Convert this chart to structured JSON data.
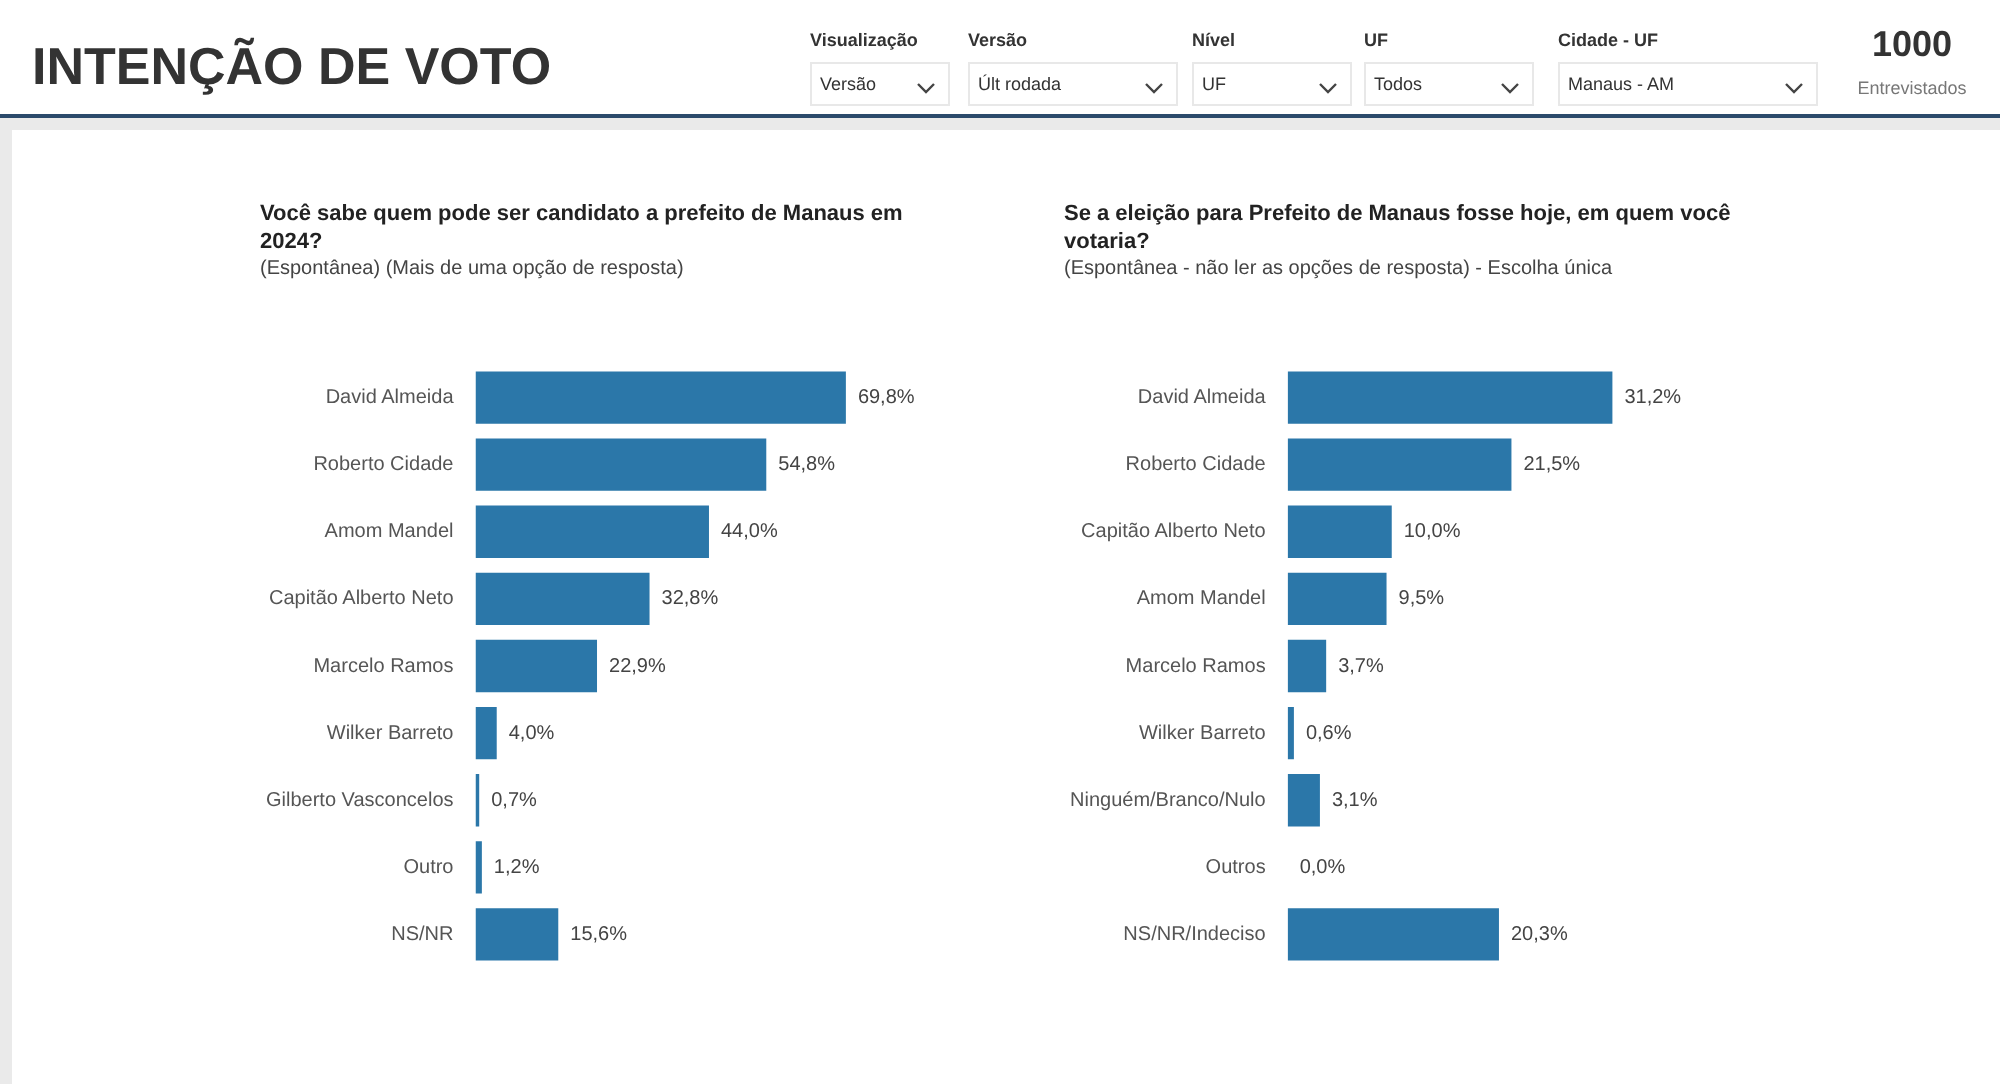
{
  "chart_data": [
    {
      "type": "other",
      "title": "INTENÇÃO DE VOTO",
      "annotations": [
        "Visualização",
        "Versão",
        "Versão",
        "Últ rodada",
        "Nível",
        "UF",
        "UF",
        "Todos",
        "Cidade - UF",
        "Manaus - AM",
        "1000",
        "Entrevistados"
      ]
    },
    {
      "type": "bar",
      "orientation": "horizontal",
      "title": "Você sabe quem pode ser candidato a prefeito de Manaus em 2024?",
      "subtitle": "(Espontânea) (Mais de uma opção de resposta)",
      "categories": [
        "David Almeida",
        "Roberto Cidade",
        "Amom Mandel",
        "Capitão Alberto Neto",
        "Marcelo Ramos",
        "Wilker Barreto",
        "Gilberto Vasconcelos",
        "Outro",
        "NS/NR"
      ],
      "values": [
        69.8,
        54.8,
        44.0,
        32.8,
        22.9,
        4.0,
        0.7,
        1.2,
        15.6
      ],
      "value_labels": [
        "69,8%",
        "54,8%",
        "44,0%",
        "32,8%",
        "22,9%",
        "4,0%",
        "0,7%",
        "1,2%",
        "15,6%"
      ],
      "color": "#2b77a9"
    },
    {
      "type": "bar",
      "orientation": "horizontal",
      "title": "Se a eleição para Prefeito de Manaus fosse hoje, em quem você votaria?",
      "subtitle": "(Espontânea - não ler as opções de resposta) - Escolha única",
      "categories": [
        "David Almeida",
        "Roberto Cidade",
        "Capitão Alberto Neto",
        "Amom Mandel",
        "Marcelo Ramos",
        "Wilker Barreto",
        "Ninguém/Branco/Nulo",
        "Outros",
        "NS/NR/Indeciso"
      ],
      "values": [
        31.2,
        21.5,
        10.0,
        9.5,
        3.7,
        0.6,
        3.1,
        0.0,
        20.3
      ],
      "value_labels": [
        "31,2%",
        "21,5%",
        "10,0%",
        "9,5%",
        "3,7%",
        "0,6%",
        "3,1%",
        "0,0%",
        "20,3%"
      ],
      "color": "#2b77a9"
    }
  ]
}
